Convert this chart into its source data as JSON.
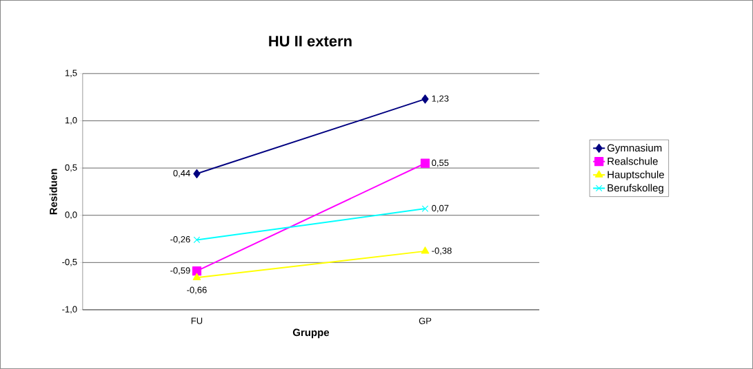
{
  "chart_data": {
    "type": "line",
    "title": "HU II extern",
    "xlabel": "Gruppe",
    "ylabel": "Residuen",
    "categories": [
      "FU",
      "GP"
    ],
    "series": [
      {
        "name": "Gymnasium",
        "color": "#000080",
        "marker": "diamond",
        "values": [
          0.44,
          1.23
        ],
        "value_labels": [
          "0,44",
          "1,23"
        ]
      },
      {
        "name": "Realschule",
        "color": "#ff00ff",
        "marker": "square",
        "values": [
          -0.59,
          0.55
        ],
        "value_labels": [
          "-0,59",
          "0,55"
        ]
      },
      {
        "name": "Hauptschule",
        "color": "#ffff00",
        "marker": "triangle",
        "values": [
          -0.66,
          -0.38
        ],
        "value_labels": [
          "-0,66",
          "-0,38"
        ]
      },
      {
        "name": "Berufskolleg",
        "color": "#00ffff",
        "marker": "cross",
        "values": [
          -0.26,
          0.07
        ],
        "value_labels": [
          "-0,26",
          "0,07"
        ]
      }
    ],
    "ylim": [
      -1,
      1.5
    ],
    "yticks": [
      {
        "value": -1,
        "label": "-1,0"
      },
      {
        "value": -0.5,
        "label": "-0,5"
      },
      {
        "value": 0,
        "label": "0,0"
      },
      {
        "value": 0.5,
        "label": "0,5"
      },
      {
        "value": 1,
        "label": "1,0"
      },
      {
        "value": 1.5,
        "label": "1,5"
      }
    ],
    "grid": "y",
    "legend": "right",
    "line_style": "solid"
  }
}
